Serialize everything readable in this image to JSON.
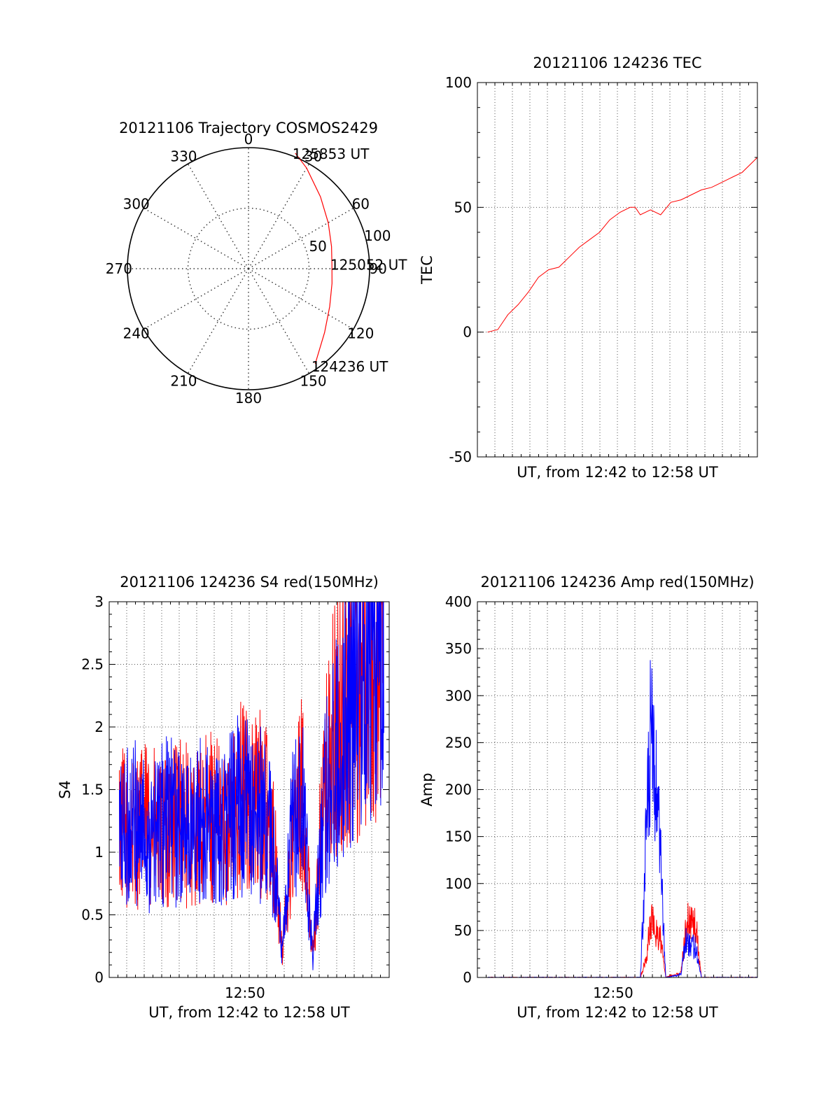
{
  "chart_data": [
    {
      "type": "polar",
      "title": "20121106 Trajectory COSMOS2429",
      "angle_labels": [
        "0",
        "30",
        "60",
        "90",
        "120",
        "150",
        "180",
        "210",
        "240",
        "270",
        "300",
        "330"
      ],
      "radius_labels": [
        "50",
        "100"
      ],
      "radius_max": 100,
      "grid": true,
      "series": [
        {
          "color": "#ff0000",
          "points": [
            {
              "az": 145,
              "el_r": 96
            },
            {
              "az": 130,
              "el_r": 82
            },
            {
              "az": 115,
              "el_r": 74
            },
            {
              "az": 100,
              "el_r": 70
            },
            {
              "az": 87,
              "el_r": 69
            },
            {
              "az": 75,
              "el_r": 71
            },
            {
              "az": 60,
              "el_r": 76
            },
            {
              "az": 45,
              "el_r": 84
            },
            {
              "az": 30,
              "el_r": 96
            },
            {
              "az": 22,
              "el_r": 103
            }
          ]
        }
      ],
      "annotations": [
        {
          "text": "124236 UT",
          "az": 146,
          "el_r": 97
        },
        {
          "text": "125052 UT",
          "az": 87,
          "el_r": 70
        },
        {
          "text": "125853 UT",
          "az": 22,
          "el_r": 103
        }
      ]
    },
    {
      "type": "line",
      "title": "20121106 124236 TEC",
      "xlabel": "UT, from 12:42 to 12:58 UT",
      "ylabel": "TEC",
      "xlim": [
        12.7,
        12.975
      ],
      "ylim": [
        -50,
        100
      ],
      "yticks": [
        "-50",
        "0",
        "50",
        "100"
      ],
      "grid": true,
      "series": [
        {
          "color": "#ff0000",
          "x": [
            12.71,
            12.72,
            12.73,
            12.74,
            12.75,
            12.76,
            12.77,
            12.78,
            12.79,
            12.8,
            12.81,
            12.82,
            12.83,
            12.84,
            12.85,
            12.855,
            12.86,
            12.87,
            12.88,
            12.89,
            12.9,
            12.91,
            12.92,
            12.93,
            12.94,
            12.95,
            12.96,
            12.975
          ],
          "y": [
            0,
            1,
            7,
            11,
            16,
            22,
            25,
            26,
            30,
            34,
            37,
            40,
            45,
            48,
            50,
            50,
            47,
            49,
            47,
            52,
            53,
            55,
            57,
            58,
            60,
            62,
            64,
            70
          ]
        }
      ]
    },
    {
      "type": "line",
      "title": "20121106 124236 S4 red(150MHz)",
      "xlabel": "UT, from 12:42 to 12:58 UT",
      "ylabel": "S4",
      "xlim": [
        12.7,
        12.975
      ],
      "ylim": [
        0,
        3
      ],
      "yticks": [
        "0",
        "0.5",
        "1",
        "1.5",
        "2",
        "2.5",
        "3"
      ],
      "xticks": [
        {
          "value": 12.8333,
          "label": "12:50"
        }
      ],
      "grid": true,
      "series": [
        {
          "color": "#ff0000",
          "x": [
            12.71,
            12.72,
            12.73,
            12.74,
            12.75,
            12.76,
            12.77,
            12.78,
            12.79,
            12.8,
            12.81,
            12.82,
            12.83,
            12.84,
            12.85,
            12.86,
            12.87,
            12.88,
            12.89,
            12.9,
            12.91,
            12.92,
            12.93,
            12.94,
            12.95,
            12.96,
            12.97
          ],
          "y": [
            1.2,
            1.15,
            1.2,
            1.25,
            1.1,
            1.2,
            1.3,
            1.15,
            1.2,
            1.3,
            1.2,
            1.25,
            1.5,
            1.35,
            1.4,
            1.2,
            0.2,
            1.1,
            1.5,
            0.15,
            1.4,
            1.9,
            2.1,
            2.3,
            2.5,
            2.7,
            2.8
          ]
        },
        {
          "color": "#0000ff",
          "x": [
            12.71,
            12.72,
            12.73,
            12.74,
            12.75,
            12.76,
            12.77,
            12.78,
            12.79,
            12.8,
            12.81,
            12.82,
            12.83,
            12.84,
            12.85,
            12.86,
            12.87,
            12.88,
            12.89,
            12.9,
            12.91,
            12.92,
            12.93,
            12.94,
            12.95,
            12.96,
            12.97
          ],
          "y": [
            1.15,
            1.2,
            1.25,
            1.1,
            1.2,
            1.3,
            1.15,
            1.2,
            1.25,
            1.2,
            1.15,
            1.3,
            1.4,
            1.3,
            1.3,
            1.1,
            0.18,
            1.2,
            1.35,
            0.17,
            1.3,
            1.7,
            2.0,
            2.4,
            2.6,
            2.8,
            2.9
          ]
        }
      ]
    },
    {
      "type": "line",
      "title": "20121106 124236 Amp red(150MHz)",
      "xlabel": "UT, from 12:42 to 12:58 UT",
      "ylabel": "Amp",
      "xlim": [
        12.7,
        12.975
      ],
      "ylim": [
        0,
        400
      ],
      "yticks": [
        "0",
        "50",
        "100",
        "150",
        "200",
        "250",
        "300",
        "350",
        "400"
      ],
      "xticks": [
        {
          "value": 12.8333,
          "label": "12:50"
        }
      ],
      "grid": true,
      "series": [
        {
          "color": "#ff0000",
          "x": [
            12.71,
            12.8,
            12.86,
            12.866,
            12.87,
            12.875,
            12.88,
            12.885,
            12.89,
            12.895,
            12.9,
            12.905,
            12.91,
            12.915,
            12.92,
            12.93,
            12.975
          ],
          "y": [
            0,
            0,
            0,
            20,
            60,
            50,
            40,
            0,
            2,
            3,
            5,
            55,
            60,
            50,
            0,
            0,
            0
          ]
        },
        {
          "color": "#0000ff",
          "x": [
            12.71,
            12.8,
            12.86,
            12.866,
            12.87,
            12.875,
            12.88,
            12.885,
            12.89,
            12.895,
            12.9,
            12.905,
            12.91,
            12.915,
            12.92,
            12.93,
            12.975
          ],
          "y": [
            0,
            0,
            0,
            150,
            250,
            200,
            120,
            0,
            1,
            2,
            4,
            40,
            35,
            30,
            0,
            0,
            0
          ]
        }
      ]
    }
  ]
}
